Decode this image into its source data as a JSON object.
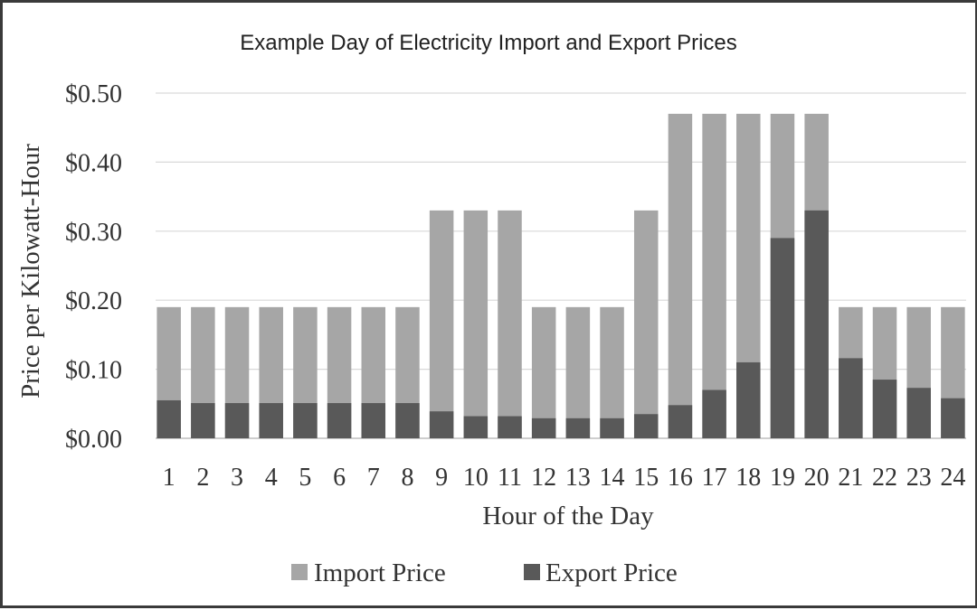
{
  "chart_data": {
    "type": "bar",
    "stacked": false,
    "overlap": true,
    "title": "Example Day of Electricity  Import and Export Prices",
    "xlabel": "Hour of the Day",
    "ylabel": "Price  per Kilowatt-Hour",
    "ylim": [
      0,
      0.5
    ],
    "yticks": [
      0,
      0.1,
      0.2,
      0.3,
      0.4,
      0.5
    ],
    "ytick_labels": [
      "$0.00",
      "$0.10",
      "$0.20",
      "$0.30",
      "$0.40",
      "$0.50"
    ],
    "grid": true,
    "legend_position": "bottom",
    "categories": [
      "1",
      "2",
      "3",
      "4",
      "5",
      "6",
      "7",
      "8",
      "9",
      "10",
      "11",
      "12",
      "13",
      "14",
      "15",
      "16",
      "17",
      "18",
      "19",
      "20",
      "21",
      "22",
      "23",
      "24"
    ],
    "series": [
      {
        "name": "Import Price",
        "color": "#a6a6a6",
        "values": [
          0.19,
          0.19,
          0.19,
          0.19,
          0.19,
          0.19,
          0.19,
          0.19,
          0.33,
          0.33,
          0.33,
          0.19,
          0.19,
          0.19,
          0.33,
          0.47,
          0.47,
          0.47,
          0.47,
          0.47,
          0.19,
          0.19,
          0.19,
          0.19
        ]
      },
      {
        "name": "Export Price",
        "color": "#595959",
        "values": [
          0.055,
          0.051,
          0.051,
          0.051,
          0.051,
          0.051,
          0.051,
          0.051,
          0.039,
          0.032,
          0.032,
          0.029,
          0.029,
          0.029,
          0.035,
          0.048,
          0.07,
          0.11,
          0.29,
          0.33,
          0.116,
          0.085,
          0.073,
          0.058
        ]
      }
    ]
  }
}
